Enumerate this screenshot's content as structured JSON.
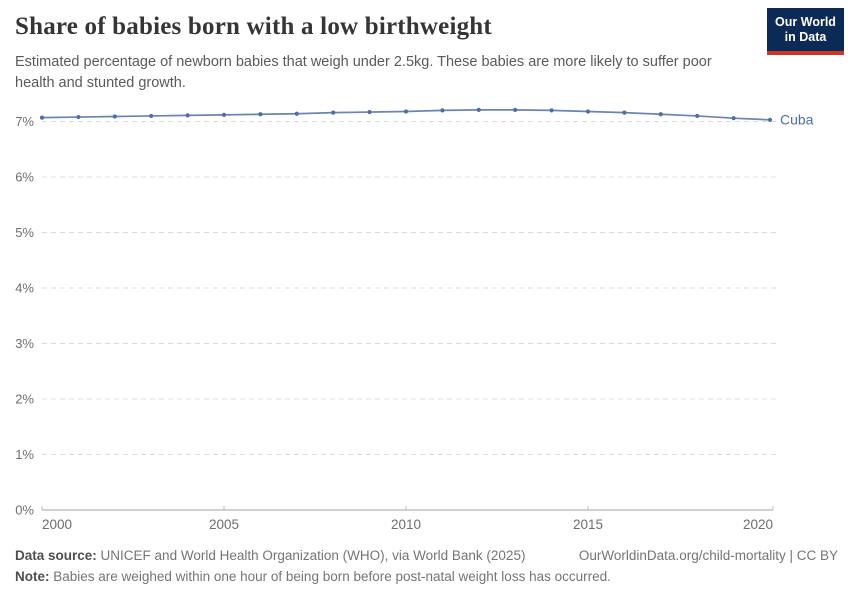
{
  "header": {
    "title": "Share of babies born with a low birthweight",
    "subtitle": "Estimated percentage of newborn babies that weigh under 2.5kg. These babies are more likely to suffer poor health and stunted growth.",
    "logo": {
      "line1": "Our World",
      "line2": "in Data",
      "bg_color": "#0c2a56",
      "accent_color": "#cf3429"
    }
  },
  "chart_data": {
    "type": "line",
    "title": "Share of babies born with a low birthweight",
    "xlabel": "",
    "ylabel": "",
    "x_range": [
      2000,
      2020
    ],
    "x_ticks": [
      2000,
      2005,
      2010,
      2015,
      2020
    ],
    "y_ticks": [
      0,
      1,
      2,
      3,
      4,
      5,
      6,
      7
    ],
    "y_tick_suffix": "%",
    "ylim": [
      0,
      7.5
    ],
    "grid": "dashed-horizontal",
    "legend_position": "end-of-line",
    "series": [
      {
        "name": "Cuba",
        "color": "#4e6ea6",
        "line_color": "#6b84b5",
        "x": [
          2000,
          2001,
          2002,
          2003,
          2004,
          2005,
          2006,
          2007,
          2008,
          2009,
          2010,
          2011,
          2012,
          2013,
          2014,
          2015,
          2016,
          2017,
          2018,
          2019,
          2020
        ],
        "values": [
          7.07,
          7.08,
          7.09,
          7.1,
          7.11,
          7.12,
          7.13,
          7.14,
          7.16,
          7.17,
          7.18,
          7.2,
          7.21,
          7.21,
          7.2,
          7.18,
          7.16,
          7.13,
          7.1,
          7.06,
          7.03
        ]
      }
    ]
  },
  "footer": {
    "data_source_label": "Data source:",
    "data_source_text": "UNICEF and World Health Organization (WHO), via World Bank (2025)",
    "link_text": "OurWorldinData.org/child-mortality | CC BY",
    "note_label": "Note:",
    "note_text": "Babies are weighed within one hour of being born before post-natal weight loss has occurred."
  }
}
